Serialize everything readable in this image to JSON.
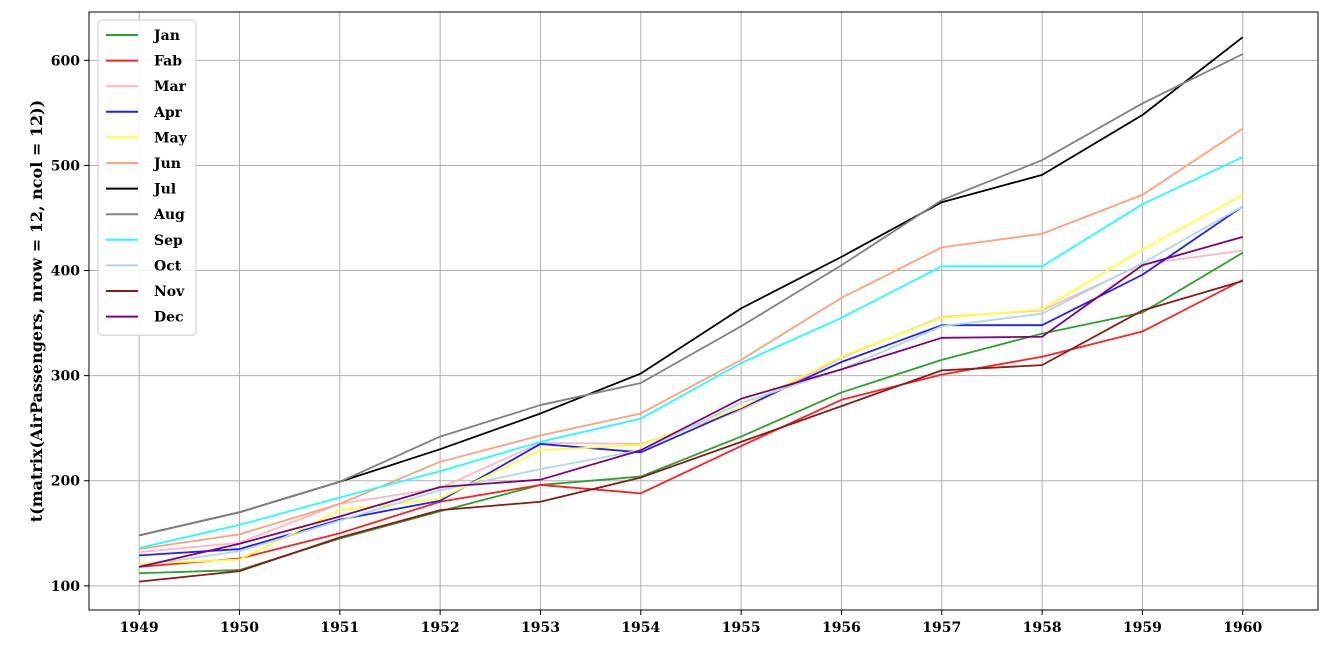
{
  "chart_data": {
    "type": "line",
    "title": "",
    "xlabel": "",
    "ylabel": "t(matrix(AirPassengers, nrow = 12, ncol = 12))",
    "x": [
      1949,
      1950,
      1951,
      1952,
      1953,
      1954,
      1955,
      1956,
      1957,
      1958,
      1959,
      1960
    ],
    "xlim": [
      1948.5,
      1960.75
    ],
    "ylim": [
      77,
      646
    ],
    "yticks": [
      100,
      200,
      300,
      400,
      500,
      600
    ],
    "grid": true,
    "legend_position": "top-left",
    "series": [
      {
        "name": "Jan",
        "color": "#2ca02c",
        "values": [
          112,
          115,
          145,
          171,
          196,
          204,
          242,
          284,
          315,
          340,
          360,
          417
        ]
      },
      {
        "name": "Fab",
        "color": "#ff2020",
        "values": [
          118,
          126,
          150,
          180,
          196,
          188,
          233,
          277,
          301,
          318,
          342,
          391
        ]
      },
      {
        "name": "Mar",
        "color": "#ffb6c1",
        "values": [
          132,
          141,
          178,
          193,
          236,
          235,
          267,
          317,
          356,
          362,
          406,
          419
        ]
      },
      {
        "name": "Apr",
        "color": "#1f1fff",
        "values": [
          129,
          135,
          163,
          181,
          235,
          227,
          269,
          313,
          348,
          348,
          396,
          461
        ]
      },
      {
        "name": "May",
        "color": "#ffff33",
        "values": [
          121,
          125,
          172,
          183,
          229,
          234,
          270,
          318,
          355,
          363,
          420,
          472
        ]
      },
      {
        "name": "Jun",
        "color": "#ffa07a",
        "values": [
          135,
          149,
          178,
          218,
          243,
          264,
          315,
          374,
          422,
          435,
          472,
          535
        ]
      },
      {
        "name": "Jul",
        "color": "#000000",
        "values": [
          148,
          170,
          199,
          230,
          264,
          302,
          364,
          413,
          465,
          491,
          548,
          622
        ]
      },
      {
        "name": "Aug",
        "color": "#808080",
        "values": [
          148,
          170,
          199,
          242,
          272,
          293,
          347,
          405,
          467,
          505,
          559,
          606
        ]
      },
      {
        "name": "Sep",
        "color": "#1fffff",
        "values": [
          136,
          158,
          184,
          209,
          237,
          259,
          312,
          355,
          404,
          404,
          463,
          508
        ]
      },
      {
        "name": "Oct",
        "color": "#add8e6",
        "values": [
          119,
          133,
          162,
          191,
          211,
          229,
          274,
          306,
          347,
          359,
          407,
          461
        ]
      },
      {
        "name": "Nov",
        "color": "#8b1a1a",
        "values": [
          104,
          114,
          146,
          172,
          180,
          203,
          237,
          271,
          305,
          310,
          362,
          390
        ]
      },
      {
        "name": "Dec",
        "color": "#800080",
        "values": [
          118,
          140,
          166,
          194,
          201,
          229,
          278,
          306,
          336,
          337,
          405,
          432
        ]
      }
    ]
  }
}
